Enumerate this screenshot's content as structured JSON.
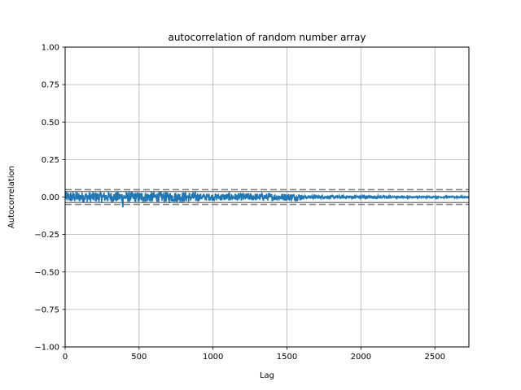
{
  "chart_data": {
    "type": "line",
    "title": "autocorrelation of random number array",
    "xlabel": "Lag",
    "ylabel": "Autocorrelation",
    "xlim": [
      0,
      2730
    ],
    "ylim": [
      -1.0,
      1.0
    ],
    "x_ticks": [
      0,
      500,
      1000,
      1500,
      2000,
      2500
    ],
    "x_tick_labels": [
      "0",
      "500",
      "1000",
      "1500",
      "2000",
      "2500"
    ],
    "y_ticks": [
      1.0,
      0.75,
      0.5,
      0.25,
      0.0,
      -0.25,
      -0.5,
      -0.75,
      -1.0
    ],
    "y_tick_labels": [
      "1.00",
      "0.75",
      "0.50",
      "0.25",
      "0.00",
      "−0.25",
      "−0.50",
      "−0.75",
      "−1.00"
    ],
    "grid": true,
    "n_lags": 2730,
    "autocorrelation_envelope": {
      "description_free": true,
      "segments": [
        {
          "lag_start": 1,
          "lag_end": 900,
          "amplitude": 0.035
        },
        {
          "lag_start": 900,
          "lag_end": 1600,
          "amplitude": 0.025
        },
        {
          "lag_start": 1600,
          "lag_end": 2200,
          "amplitude": 0.012
        },
        {
          "lag_start": 2200,
          "lag_end": 2730,
          "amplitude": 0.006
        }
      ],
      "min_value": -0.065,
      "min_at_lag": 390
    },
    "confidence_bands": {
      "z95": 0.0375,
      "z99": 0.0493
    },
    "colors": {
      "series": "#1f77b4",
      "bands": "#808080",
      "grid": "#b0b0b0"
    }
  }
}
